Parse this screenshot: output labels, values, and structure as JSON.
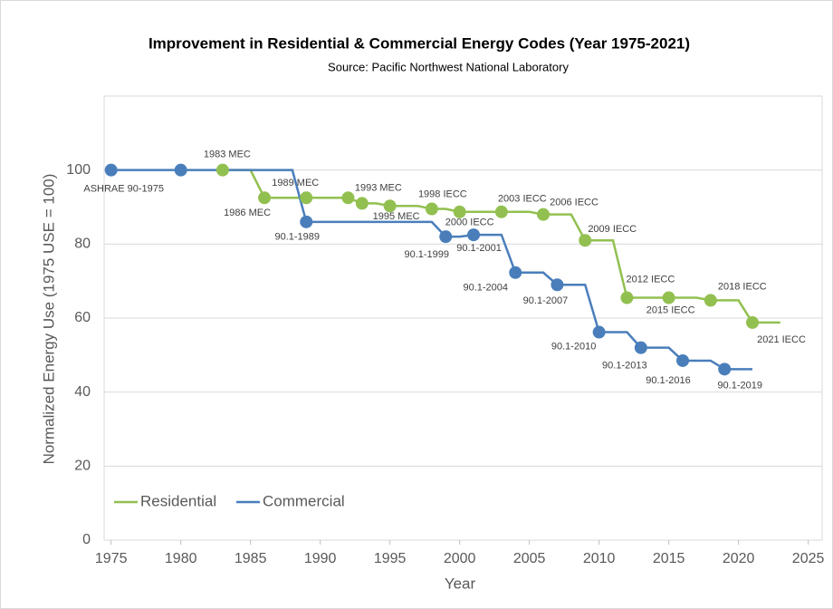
{
  "chart_data": {
    "type": "step-line",
    "title": "Improvement in Residential & Commercial Energy Codes (Year 1975-2021)",
    "subtitle": "Source: Pacific Northwest National Laboratory",
    "x_label": "Year",
    "y_label": "Normalized Energy Use (1975 USE = 100)",
    "xlim": [
      1974.5,
      2026
    ],
    "xticks": [
      1975,
      1980,
      1985,
      1990,
      1995,
      2000,
      2005,
      2010,
      2015,
      2020,
      2025
    ],
    "ylim": [
      0,
      120
    ],
    "yticks": [
      0,
      20,
      40,
      60,
      80,
      100
    ],
    "grid": true,
    "legend": "lower left",
    "series": [
      {
        "name": "Residential",
        "color": "#92c050",
        "x": [
          1983,
          1986,
          1989,
          1992,
          1993,
          1995,
          1998,
          2000,
          2003,
          2006,
          2009,
          2012,
          2015,
          2018,
          2021
        ],
        "values": [
          100,
          92.5,
          92.5,
          92.5,
          91,
          90.3,
          89.5,
          88.7,
          88.7,
          88,
          81,
          65.5,
          65.5,
          64.8,
          58.8
        ],
        "labels": [
          "1983 MEC",
          "1986 MEC",
          "1989 MEC",
          null,
          "1993 MEC",
          "1995 MEC",
          "1998 IECC",
          "2000 IECC",
          "2003 IECC",
          "2006 IECC",
          "2009 IECC",
          "2012 IECC",
          "2015 IECC",
          "2018 IECC",
          "2021 IECC"
        ],
        "line_end_x": 2023
      },
      {
        "name": "Commercial",
        "color": "#4a7ebb",
        "x": [
          1975,
          1980,
          1989,
          1999,
          2001,
          2004,
          2007,
          2010,
          2013,
          2016,
          2019
        ],
        "values": [
          100,
          100,
          86,
          82,
          82.5,
          72.3,
          69,
          56.2,
          52,
          48.5,
          46.2
        ],
        "labels": [
          "ASHRAE 90-1975",
          null,
          "90.1-1989",
          "90.1-1999",
          "90.1-2001",
          "90.1-2004",
          "90.1-2007",
          "90.1-2010",
          "90.1-2013",
          "90.1-2016",
          "90.1-2019"
        ],
        "line_end_x": 2021
      }
    ]
  }
}
